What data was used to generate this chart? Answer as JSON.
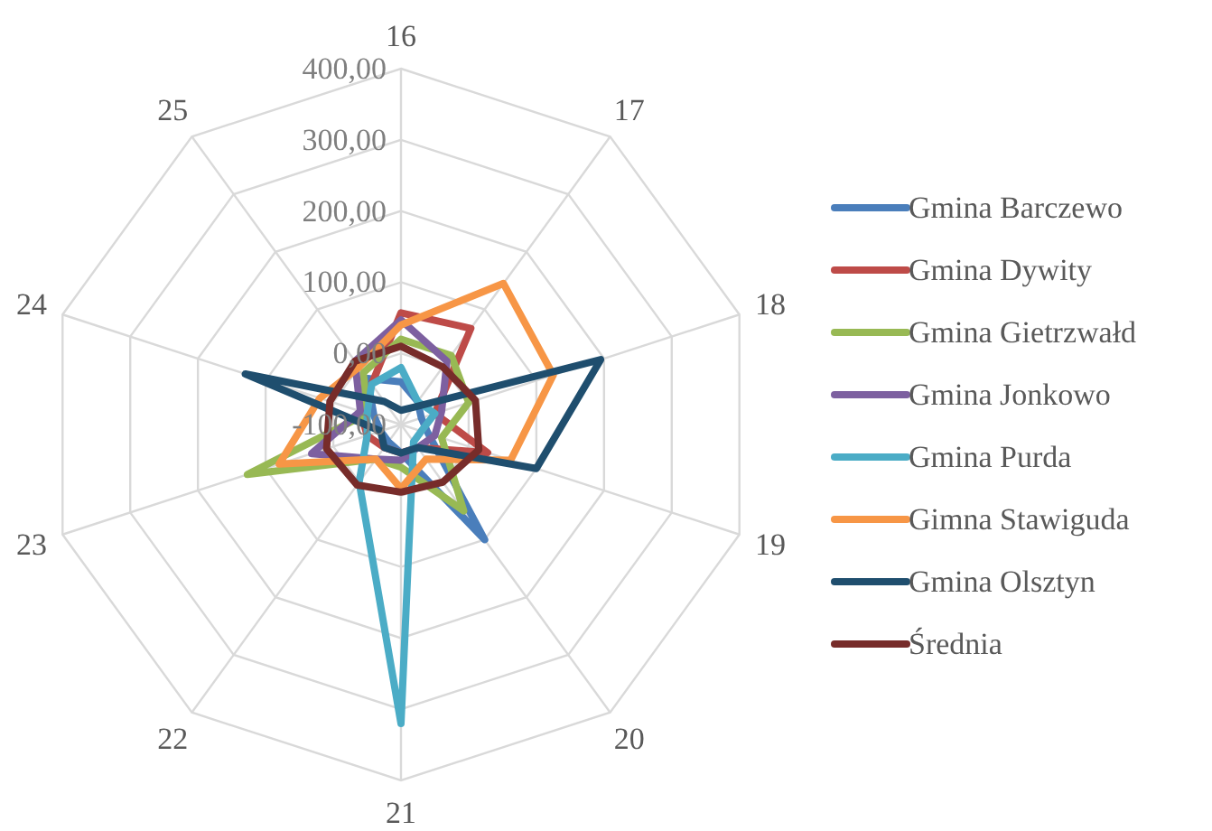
{
  "chart_data": {
    "type": "radar",
    "categories": [
      "16",
      "17",
      "18",
      "19",
      "20",
      "21",
      "22",
      "23",
      "24",
      "25"
    ],
    "ylim": [
      -100,
      400
    ],
    "yticks": [
      {
        "value": -100,
        "label": "-100,00"
      },
      {
        "value": 0,
        "label": "0,00"
      },
      {
        "value": 100,
        "label": "100,00"
      },
      {
        "value": 200,
        "label": "200,00"
      },
      {
        "value": 300,
        "label": "300,00"
      },
      {
        "value": 400,
        "label": "400,00"
      }
    ],
    "grid": true,
    "legend": "right",
    "marker": "none",
    "line_style": "solid",
    "series": [
      {
        "name": "Gmina Barczewo",
        "color": "#4a7ebb",
        "values": [
          -40,
          -60,
          -70,
          -60,
          100,
          -60,
          -70,
          -70,
          -60,
          -20
        ]
      },
      {
        "name": "Gmina Dywity",
        "color": "#be4b48",
        "values": [
          57,
          67,
          -50,
          28,
          -60,
          -60,
          -60,
          -50,
          -40,
          -30
        ]
      },
      {
        "name": "Gmina Gietrzwałd",
        "color": "#98b954",
        "values": [
          20,
          20,
          0,
          -40,
          50,
          -40,
          -40,
          127,
          -50,
          -10
        ]
      },
      {
        "name": "Gmina Jonkowo",
        "color": "#7d60a0",
        "values": [
          47,
          10,
          -40,
          -50,
          -60,
          -50,
          -40,
          32,
          -40,
          10
        ]
      },
      {
        "name": "Gmina Purda",
        "color": "#4bacc6",
        "values": [
          -20,
          -60,
          -50,
          -70,
          -70,
          320,
          0,
          -50,
          -50,
          -30
        ]
      },
      {
        "name": "Gimna Stawiguda",
        "color": "#f79646",
        "values": [
          40,
          145,
          125,
          62,
          -40,
          -10,
          -40,
          80,
          20,
          0
        ]
      },
      {
        "name": "Gmina Olsztyn",
        "color": "#1f4e6e",
        "values": [
          -80,
          -70,
          195,
          100,
          -60,
          -60,
          -60,
          -70,
          130,
          -60
        ]
      },
      {
        "name": "Średnia",
        "color": "#772c2a",
        "values": [
          10,
          0,
          10,
          15,
          0,
          -5,
          5,
          10,
          5,
          10
        ]
      }
    ]
  }
}
